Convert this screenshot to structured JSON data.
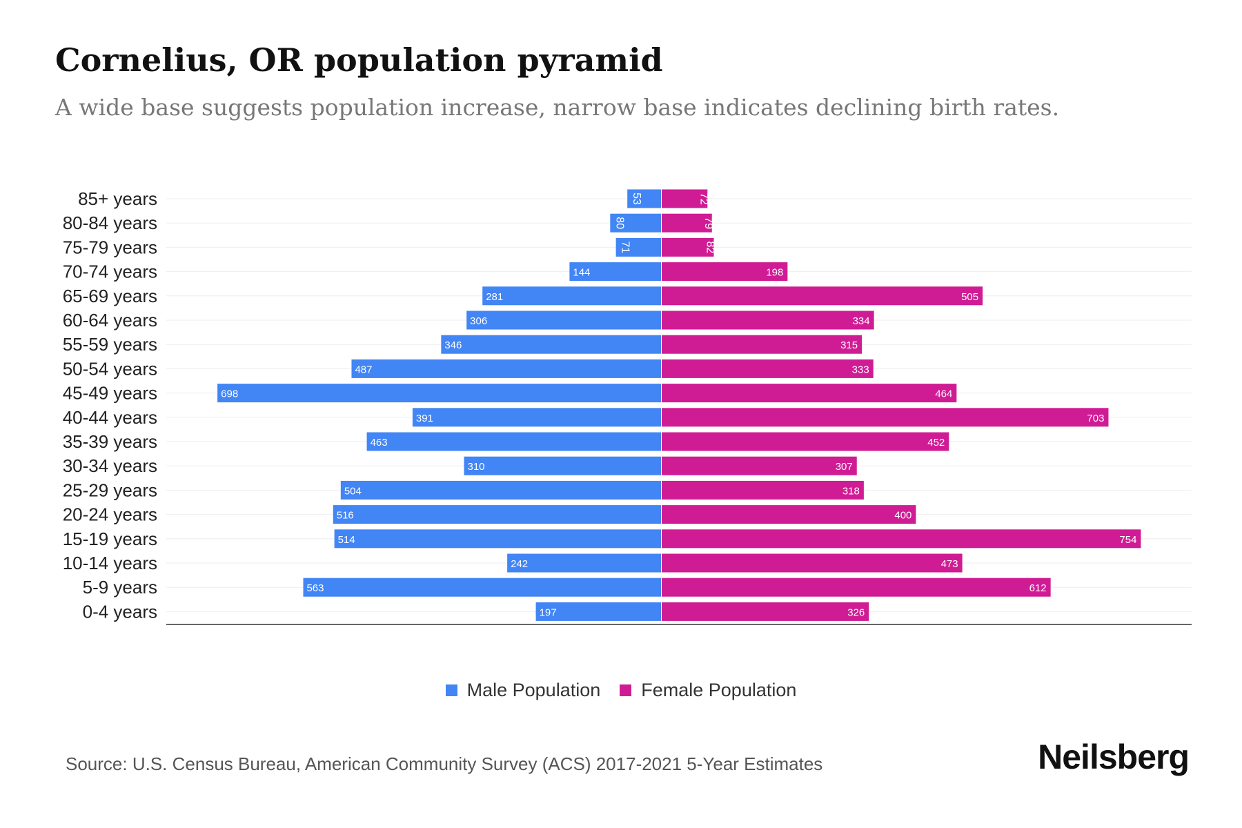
{
  "title": "Cornelius, OR population pyramid",
  "subtitle": "A wide base suggests population increase, narrow base indicates declining birth rates.",
  "source": "Source: U.S. Census Bureau, American Community Survey (ACS) 2017-2021 5-Year Estimates",
  "logo": "Neilsberg",
  "colors": {
    "male": "#4285f4",
    "female": "#d01c94"
  },
  "chart_data": {
    "type": "bar",
    "orientation": "horizontal-pyramid",
    "title": "Cornelius, OR population pyramid",
    "categories": [
      "85+ years",
      "80-84 years",
      "75-79 years",
      "70-74 years",
      "65-69 years",
      "60-64 years",
      "55-59 years",
      "50-54 years",
      "45-49 years",
      "40-44 years",
      "35-39 years",
      "30-34 years",
      "25-29 years",
      "20-24 years",
      "15-19 years",
      "10-14 years",
      "5-9 years",
      "0-4 years"
    ],
    "series": [
      {
        "name": "Male Population",
        "values": [
          53,
          80,
          71,
          144,
          281,
          306,
          346,
          487,
          698,
          391,
          463,
          310,
          504,
          516,
          514,
          242,
          563,
          197
        ]
      },
      {
        "name": "Female Population",
        "values": [
          72,
          79,
          82,
          198,
          505,
          334,
          315,
          333,
          464,
          703,
          452,
          307,
          318,
          400,
          754,
          473,
          612,
          326
        ]
      }
    ],
    "legend": "bottom-center",
    "grid": true
  }
}
